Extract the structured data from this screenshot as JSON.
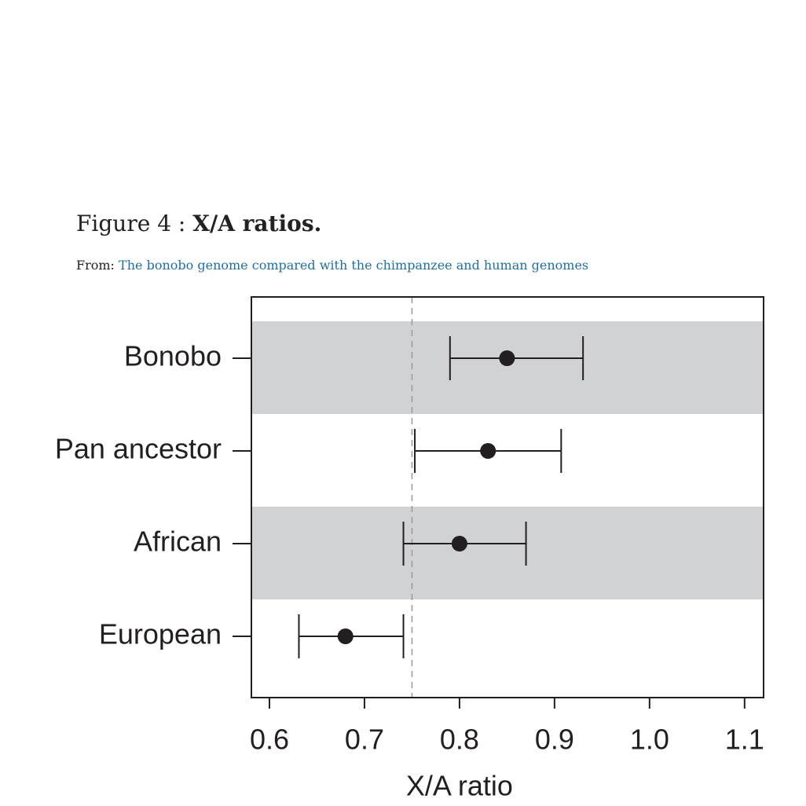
{
  "figure_label": "Figure 4 :",
  "figure_title": "X/A ratios.",
  "source_prefix": "From:",
  "source_link": "The bonobo genome compared with the chimpanzee and human genomes",
  "chart_data": {
    "type": "errorbar",
    "x_label": "X/A ratio",
    "categories": [
      "Bonobo",
      "Pan ancestor",
      "African",
      "European"
    ],
    "values": [
      0.85,
      0.83,
      0.8,
      0.68
    ],
    "lower": [
      0.79,
      0.753,
      0.741,
      0.631
    ],
    "upper": [
      0.93,
      0.907,
      0.87,
      0.741
    ],
    "reference_line": 0.75,
    "xlim": [
      0.581,
      1.12
    ],
    "xticks": [
      0.6,
      0.7,
      0.8,
      0.9,
      {
        "value": 1,
        "label": "1.0"
      },
      1.1
    ],
    "color": "#231f20",
    "band_color": "#d1d2d4"
  }
}
